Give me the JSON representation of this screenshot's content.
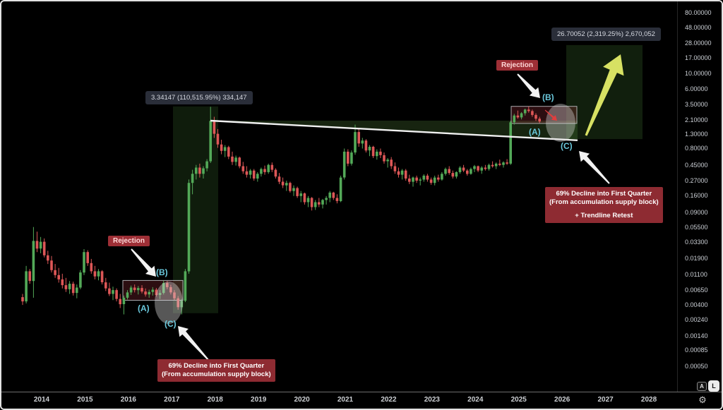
{
  "price_axis": {
    "labels": [
      "80.00000",
      "48.00000",
      "28.00000",
      "17.00000",
      "10.00000",
      "6.00000",
      "3.50000",
      "2.10000",
      "1.30000",
      "0.80000",
      "0.45000",
      "0.27000",
      "0.16000",
      "0.09000",
      "0.05500",
      "0.03300",
      "0.01900",
      "0.01100",
      "0.00650",
      "0.00400",
      "0.00240",
      "0.00140",
      "0.00085",
      "0.00050"
    ],
    "auto_button": "A",
    "log_button": "L"
  },
  "time_axis": {
    "labels": [
      "2014",
      "2015",
      "2016",
      "2017",
      "2018",
      "2019",
      "2020",
      "2021",
      "2022",
      "2023",
      "2024",
      "2025",
      "2026",
      "2027",
      "2028"
    ],
    "gear_icon": "⚙"
  },
  "annotations": {
    "measure_left": "3.34147 (110,515.95%) 334,147",
    "measure_right": "26.70052 (2,319.25%) 2,670,052",
    "rejection_left": "Rejection",
    "rejection_right": "Rejection",
    "wave_b_left": "(B)",
    "wave_a_left": "(A)",
    "wave_c_left": "(C)",
    "wave_b_right": "(B)",
    "wave_a_right": "(A)",
    "wave_c_right": "(C)",
    "decline_left_line1": "69% Decline into First Quarter",
    "decline_left_line2": "(From accumulation supply block)",
    "decline_right_line1": "69% Decline into First Quarter",
    "decline_right_line2": "(From accumulation supply block)",
    "decline_right_line3": "+ Trendline Retest"
  },
  "colors": {
    "up": "#53a958",
    "down": "#dd5757",
    "cyan": "#6ac8dc",
    "trendline": "#f0f0f0",
    "arrow_white": "#f2f2f2",
    "arrow_yellow": "#d7e163",
    "arrow_red": "#e03e3e",
    "zone_green": "#54803a",
    "position_green": "#4c8c3c",
    "supply_red": "#b03642",
    "supply_border": "#cfd2d8",
    "ellipse_gray": "#d9d9d9",
    "label_box": "#2a2e39",
    "note_box": "#8e2b32"
  },
  "chart_data": {
    "type": "candlestick",
    "scale": "logarithmic",
    "x_unit": "month",
    "x_years": [
      2014,
      2015,
      2016,
      2017,
      2018,
      2019,
      2020,
      2021,
      2022,
      2023,
      2024,
      2025,
      2026,
      2027,
      2028
    ],
    "ylim": [
      0.0005,
      80
    ],
    "y_ticks": [
      80,
      48,
      28,
      17,
      10,
      6,
      3.5,
      2.1,
      1.3,
      0.8,
      0.45,
      0.27,
      0.16,
      0.09,
      0.055,
      0.033,
      0.019,
      0.011,
      0.0065,
      0.004,
      0.0024,
      0.0014,
      0.00085,
      0.0005
    ],
    "candles_ohlc": [
      [
        0.0052,
        0.0058,
        0.004,
        0.0045
      ],
      [
        0.0045,
        0.015,
        0.0042,
        0.0125
      ],
      [
        0.0125,
        0.0135,
        0.0082,
        0.009
      ],
      [
        0.009,
        0.056,
        0.0051,
        0.035
      ],
      [
        0.035,
        0.048,
        0.024,
        0.027
      ],
      [
        0.027,
        0.04,
        0.023,
        0.034
      ],
      [
        0.034,
        0.038,
        0.02,
        0.0215
      ],
      [
        0.0215,
        0.025,
        0.016,
        0.018
      ],
      [
        0.018,
        0.021,
        0.012,
        0.013
      ],
      [
        0.013,
        0.016,
        0.01,
        0.011
      ],
      [
        0.011,
        0.014,
        0.0085,
        0.0095
      ],
      [
        0.0095,
        0.0115,
        0.007,
        0.0078
      ],
      [
        0.0078,
        0.01,
        0.0062,
        0.0068
      ],
      [
        0.0068,
        0.009,
        0.0058,
        0.0082
      ],
      [
        0.0082,
        0.0088,
        0.0055,
        0.006
      ],
      [
        0.006,
        0.008,
        0.005,
        0.0072
      ],
      [
        0.0072,
        0.013,
        0.0068,
        0.012
      ],
      [
        0.012,
        0.0265,
        0.011,
        0.024
      ],
      [
        0.024,
        0.0255,
        0.015,
        0.0165
      ],
      [
        0.0165,
        0.019,
        0.0115,
        0.0125
      ],
      [
        0.0125,
        0.015,
        0.0095,
        0.0105
      ],
      [
        0.0105,
        0.0135,
        0.0092,
        0.0125
      ],
      [
        0.0125,
        0.013,
        0.008,
        0.0086
      ],
      [
        0.0086,
        0.01,
        0.0064,
        0.007
      ],
      [
        0.007,
        0.0085,
        0.0054,
        0.0058
      ],
      [
        0.0058,
        0.0074,
        0.0047,
        0.0066
      ],
      [
        0.0066,
        0.007,
        0.0045,
        0.0049
      ],
      [
        0.0049,
        0.0058,
        0.0036,
        0.0041
      ],
      [
        0.0041,
        0.0055,
        0.0029,
        0.0051
      ],
      [
        0.0051,
        0.0066,
        0.0048,
        0.0061
      ],
      [
        0.0061,
        0.0077,
        0.0056,
        0.0072
      ],
      [
        0.0072,
        0.008,
        0.0061,
        0.0066
      ],
      [
        0.0066,
        0.0076,
        0.0057,
        0.0071
      ],
      [
        0.0071,
        0.0078,
        0.0059,
        0.0063
      ],
      [
        0.0063,
        0.007,
        0.0053,
        0.0057
      ],
      [
        0.0057,
        0.0067,
        0.0051,
        0.0062
      ],
      [
        0.0062,
        0.0073,
        0.0055,
        0.0067
      ],
      [
        0.0067,
        0.0071,
        0.0053,
        0.0056
      ],
      [
        0.0056,
        0.0066,
        0.0049,
        0.006
      ],
      [
        0.006,
        0.0091,
        0.0057,
        0.0084
      ],
      [
        0.0084,
        0.009,
        0.0068,
        0.0073
      ],
      [
        0.0073,
        0.0079,
        0.0057,
        0.0061
      ],
      [
        0.0061,
        0.0066,
        0.0047,
        0.005
      ],
      [
        0.005,
        0.0054,
        0.0034,
        0.0037
      ],
      [
        0.0037,
        0.0049,
        0.0029,
        0.0046
      ],
      [
        0.0046,
        0.0135,
        0.0044,
        0.0125
      ],
      [
        0.0125,
        0.28,
        0.0115,
        0.25
      ],
      [
        0.25,
        0.39,
        0.17,
        0.34
      ],
      [
        0.34,
        0.46,
        0.28,
        0.42
      ],
      [
        0.42,
        0.48,
        0.3,
        0.34
      ],
      [
        0.34,
        0.44,
        0.29,
        0.41
      ],
      [
        0.41,
        0.56,
        0.37,
        0.52
      ],
      [
        0.52,
        3.3,
        0.49,
        2.05
      ],
      [
        2.05,
        2.35,
        1.15,
        1.32
      ],
      [
        1.32,
        1.55,
        0.82,
        0.92
      ],
      [
        0.92,
        1.08,
        0.66,
        0.74
      ],
      [
        0.74,
        0.9,
        0.6,
        0.84
      ],
      [
        0.84,
        0.88,
        0.56,
        0.61
      ],
      [
        0.61,
        0.72,
        0.46,
        0.51
      ],
      [
        0.51,
        0.63,
        0.45,
        0.59
      ],
      [
        0.59,
        0.61,
        0.41,
        0.44
      ],
      [
        0.44,
        0.51,
        0.34,
        0.37
      ],
      [
        0.37,
        0.44,
        0.3,
        0.33
      ],
      [
        0.33,
        0.4,
        0.29,
        0.38
      ],
      [
        0.38,
        0.4,
        0.27,
        0.29
      ],
      [
        0.29,
        0.36,
        0.26,
        0.34
      ],
      [
        0.34,
        0.42,
        0.31,
        0.4
      ],
      [
        0.4,
        0.45,
        0.33,
        0.36
      ],
      [
        0.36,
        0.48,
        0.34,
        0.46
      ],
      [
        0.46,
        0.5,
        0.36,
        0.39
      ],
      [
        0.39,
        0.41,
        0.29,
        0.31
      ],
      [
        0.31,
        0.35,
        0.24,
        0.26
      ],
      [
        0.26,
        0.3,
        0.21,
        0.23
      ],
      [
        0.23,
        0.27,
        0.19,
        0.25
      ],
      [
        0.25,
        0.26,
        0.18,
        0.19
      ],
      [
        0.19,
        0.23,
        0.16,
        0.21
      ],
      [
        0.21,
        0.22,
        0.15,
        0.16
      ],
      [
        0.16,
        0.19,
        0.13,
        0.175
      ],
      [
        0.175,
        0.18,
        0.12,
        0.13
      ],
      [
        0.13,
        0.16,
        0.11,
        0.15
      ],
      [
        0.15,
        0.155,
        0.098,
        0.11
      ],
      [
        0.11,
        0.14,
        0.1,
        0.13
      ],
      [
        0.13,
        0.15,
        0.11,
        0.12
      ],
      [
        0.12,
        0.145,
        0.105,
        0.14
      ],
      [
        0.14,
        0.16,
        0.12,
        0.15
      ],
      [
        0.15,
        0.19,
        0.13,
        0.18
      ],
      [
        0.18,
        0.185,
        0.14,
        0.15
      ],
      [
        0.15,
        0.17,
        0.125,
        0.135
      ],
      [
        0.135,
        0.32,
        0.13,
        0.3
      ],
      [
        0.3,
        0.8,
        0.28,
        0.72
      ],
      [
        0.72,
        0.78,
        0.44,
        0.48
      ],
      [
        0.48,
        0.75,
        0.45,
        0.7
      ],
      [
        0.7,
        1.8,
        0.65,
        1.4
      ],
      [
        1.4,
        1.55,
        0.85,
        0.95
      ],
      [
        0.95,
        1.15,
        0.8,
        1.05
      ],
      [
        1.05,
        1.1,
        0.7,
        0.75
      ],
      [
        0.75,
        0.9,
        0.62,
        0.85
      ],
      [
        0.85,
        0.88,
        0.58,
        0.62
      ],
      [
        0.62,
        0.78,
        0.55,
        0.72
      ],
      [
        0.72,
        0.8,
        0.58,
        0.64
      ],
      [
        0.64,
        0.7,
        0.48,
        0.52
      ],
      [
        0.52,
        0.58,
        0.42,
        0.55
      ],
      [
        0.55,
        0.6,
        0.4,
        0.44
      ],
      [
        0.44,
        0.5,
        0.34,
        0.37
      ],
      [
        0.37,
        0.42,
        0.3,
        0.33
      ],
      [
        0.33,
        0.4,
        0.28,
        0.38
      ],
      [
        0.38,
        0.4,
        0.27,
        0.29
      ],
      [
        0.29,
        0.33,
        0.24,
        0.26
      ],
      [
        0.26,
        0.31,
        0.22,
        0.3
      ],
      [
        0.3,
        0.32,
        0.25,
        0.27
      ],
      [
        0.27,
        0.3,
        0.23,
        0.28
      ],
      [
        0.28,
        0.335,
        0.26,
        0.32
      ],
      [
        0.32,
        0.34,
        0.26,
        0.28
      ],
      [
        0.28,
        0.3,
        0.235,
        0.25
      ],
      [
        0.25,
        0.32,
        0.23,
        0.3
      ],
      [
        0.3,
        0.33,
        0.26,
        0.28
      ],
      [
        0.28,
        0.36,
        0.27,
        0.34
      ],
      [
        0.34,
        0.42,
        0.32,
        0.4
      ],
      [
        0.4,
        0.44,
        0.33,
        0.35
      ],
      [
        0.35,
        0.38,
        0.29,
        0.31
      ],
      [
        0.31,
        0.37,
        0.29,
        0.36
      ],
      [
        0.36,
        0.44,
        0.34,
        0.42
      ],
      [
        0.42,
        0.46,
        0.36,
        0.38
      ],
      [
        0.38,
        0.4,
        0.32,
        0.34
      ],
      [
        0.34,
        0.42,
        0.33,
        0.4
      ],
      [
        0.4,
        0.46,
        0.36,
        0.44
      ],
      [
        0.44,
        0.45,
        0.36,
        0.38
      ],
      [
        0.38,
        0.44,
        0.34,
        0.42
      ],
      [
        0.42,
        0.46,
        0.38,
        0.4
      ],
      [
        0.4,
        0.48,
        0.38,
        0.46
      ],
      [
        0.46,
        0.52,
        0.42,
        0.44
      ],
      [
        0.44,
        0.5,
        0.4,
        0.48
      ],
      [
        0.48,
        0.55,
        0.44,
        0.46
      ],
      [
        0.46,
        0.52,
        0.42,
        0.5
      ],
      [
        0.5,
        0.56,
        0.46,
        0.48
      ],
      [
        0.48,
        2.05,
        0.46,
        1.95
      ],
      [
        1.95,
        2.6,
        1.8,
        2.45
      ],
      [
        2.45,
        2.9,
        2.2,
        2.3
      ],
      [
        2.3,
        2.75,
        2.15,
        2.65
      ],
      [
        2.65,
        3.1,
        2.45,
        3.0
      ],
      [
        3.0,
        3.35,
        2.7,
        2.85
      ],
      [
        2.85,
        3.0,
        2.35,
        2.5
      ],
      [
        2.5,
        2.65,
        2.05,
        2.2
      ],
      [
        2.2,
        2.35,
        1.9,
        2.0
      ]
    ],
    "position_tools": [
      {
        "entry": 0.00302,
        "target": 3.34147,
        "label": "3.34147 (110,515.95%) 334,147"
      },
      {
        "entry": 1.1036,
        "target": 26.70052,
        "label": "26.70052 (2,319.25%) 2,670,052"
      }
    ],
    "supply_blocks": [
      {
        "low": 0.00468,
        "high": 0.00917
      },
      {
        "low": 1.88,
        "high": 3.35
      }
    ],
    "trendline": {
      "p1": 2.06,
      "p2": 1.06
    }
  }
}
